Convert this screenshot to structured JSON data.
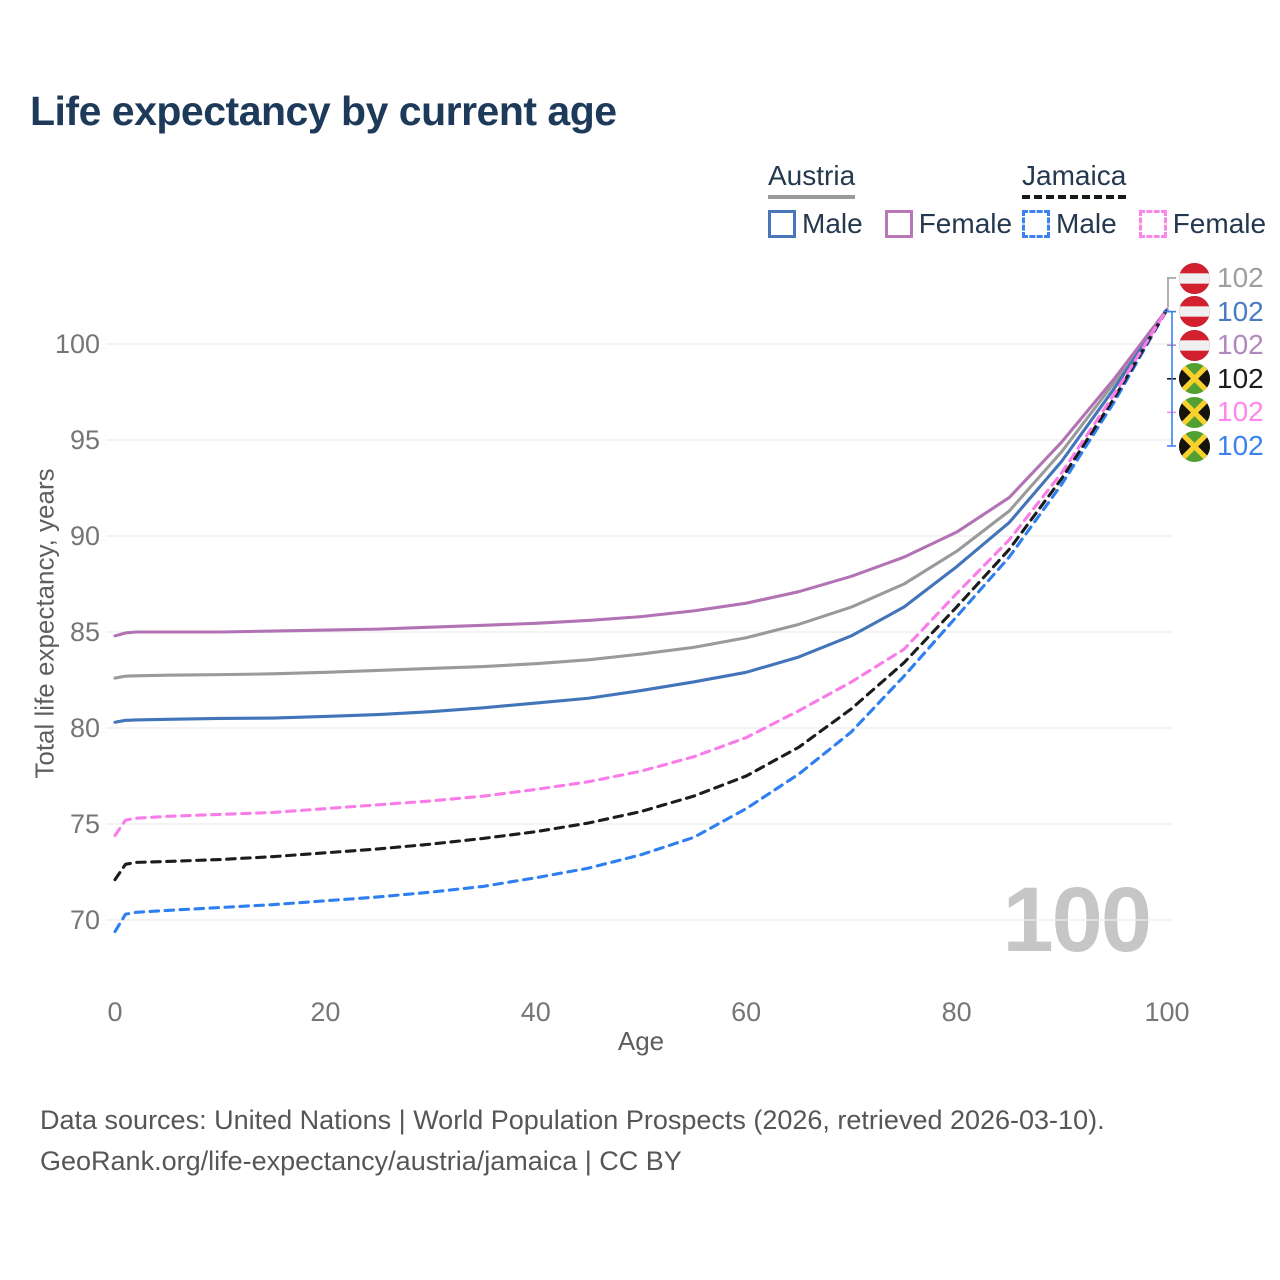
{
  "title": "Life expectancy by current age",
  "watermark": "100",
  "legend": {
    "groups": [
      {
        "name": "Austria",
        "line_style": "solid",
        "swatch_color": "#9a9a9a",
        "items": [
          {
            "label": "Male",
            "color": "#4a77bb",
            "dashed": false
          },
          {
            "label": "Female",
            "color": "#b777b8",
            "dashed": false
          }
        ]
      },
      {
        "name": "Jamaica",
        "line_style": "dashed",
        "swatch_color": "#1a1a1a",
        "items": [
          {
            "label": "Male",
            "color": "#3b82f0",
            "dashed": true
          },
          {
            "label": "Female",
            "color": "#f986e9",
            "dashed": true
          }
        ]
      }
    ]
  },
  "chart_data": {
    "type": "line",
    "title": "Life expectancy by current age",
    "xlabel": "Age",
    "ylabel": "Total life expectancy, years",
    "xlim": [
      0,
      100
    ],
    "ylim": [
      69,
      102.5
    ],
    "x_ticks": [
      0,
      20,
      40,
      60,
      80,
      100
    ],
    "y_ticks": [
      70,
      75,
      80,
      85,
      90,
      95,
      100
    ],
    "grid": "horizontal",
    "legend_position": "top-right",
    "current_age_indicator": 100,
    "x": [
      0,
      1,
      2,
      5,
      10,
      15,
      20,
      25,
      30,
      35,
      40,
      45,
      50,
      55,
      60,
      65,
      70,
      75,
      80,
      85,
      90,
      95,
      100
    ],
    "series": [
      {
        "name": "Austria",
        "country": "Austria",
        "sex": "Both",
        "color": "#9a9a9a",
        "dashed": false,
        "values": [
          82.6,
          82.7,
          82.72,
          82.75,
          82.78,
          82.82,
          82.9,
          83.0,
          83.1,
          83.2,
          83.35,
          83.55,
          83.85,
          84.2,
          84.7,
          85.4,
          86.3,
          87.5,
          89.2,
          91.3,
          94.4,
          98.0,
          101.8
        ]
      },
      {
        "name": "Austria Male",
        "country": "Austria",
        "sex": "Male",
        "color": "#4274b9",
        "dashed": false,
        "values": [
          80.3,
          80.4,
          80.42,
          80.45,
          80.5,
          80.52,
          80.6,
          80.7,
          80.85,
          81.05,
          81.3,
          81.55,
          81.95,
          82.4,
          82.9,
          83.7,
          84.8,
          86.3,
          88.4,
          90.7,
          93.9,
          97.7,
          101.8
        ]
      },
      {
        "name": "Austria Female",
        "country": "Austria",
        "sex": "Female",
        "color": "#b173b4",
        "dashed": false,
        "values": [
          84.8,
          84.95,
          85.0,
          85.0,
          85.0,
          85.05,
          85.1,
          85.15,
          85.25,
          85.35,
          85.45,
          85.6,
          85.8,
          86.1,
          86.5,
          87.1,
          87.9,
          88.9,
          90.2,
          92.0,
          94.9,
          98.2,
          101.8
        ]
      },
      {
        "name": "Jamaica Male",
        "country": "Jamaica",
        "sex": "Male",
        "color": "#2e7ff0",
        "dashed": true,
        "values": [
          69.4,
          70.3,
          70.4,
          70.5,
          70.65,
          70.8,
          71.0,
          71.2,
          71.45,
          71.75,
          72.2,
          72.7,
          73.4,
          74.3,
          75.8,
          77.6,
          79.8,
          82.7,
          85.8,
          88.9,
          92.7,
          97.0,
          101.8
        ]
      },
      {
        "name": "Jamaica",
        "country": "Jamaica",
        "sex": "Both",
        "color": "#1c1c1c",
        "dashed": true,
        "values": [
          72.1,
          72.9,
          73.0,
          73.05,
          73.15,
          73.3,
          73.5,
          73.7,
          73.95,
          74.25,
          74.6,
          75.05,
          75.65,
          76.45,
          77.5,
          79.0,
          81.0,
          83.4,
          86.3,
          89.3,
          93.0,
          97.2,
          101.8
        ]
      },
      {
        "name": "Jamaica Female",
        "country": "Jamaica",
        "sex": "Female",
        "color": "#fa7ce8",
        "dashed": true,
        "values": [
          74.4,
          75.2,
          75.3,
          75.4,
          75.5,
          75.6,
          75.8,
          76.0,
          76.2,
          76.45,
          76.8,
          77.2,
          77.75,
          78.5,
          79.5,
          80.9,
          82.4,
          84.1,
          87.0,
          89.8,
          93.3,
          97.4,
          101.8
        ]
      }
    ],
    "end_labels": [
      {
        "series": "Austria",
        "value": "102",
        "color": "#9e9e9e",
        "flag": "austria"
      },
      {
        "series": "Austria Male",
        "value": "102",
        "color": "#4a7ac0",
        "flag": "austria"
      },
      {
        "series": "Austria Female",
        "value": "102",
        "color": "#b287bd",
        "flag": "austria"
      },
      {
        "series": "Jamaica",
        "value": "102",
        "color": "#1c1c1c",
        "flag": "jamaica"
      },
      {
        "series": "Jamaica Female",
        "value": "102",
        "color": "#ff86ec",
        "flag": "jamaica"
      },
      {
        "series": "Jamaica Male",
        "value": "102",
        "color": "#3b82f0",
        "flag": "jamaica"
      }
    ]
  },
  "footer": {
    "line1": "Data sources: United Nations | World Population Prospects (2026, retrieved 2026-03-10).",
    "line2": "GeoRank.org/life-expectancy/austria/jamaica | CC BY"
  },
  "flag_colors": {
    "austria_red": "#d2202f",
    "austria_white": "#f0f0f0",
    "jamaica_green": "#52a033",
    "jamaica_gold": "#f8d12c",
    "jamaica_black": "#15130c"
  }
}
